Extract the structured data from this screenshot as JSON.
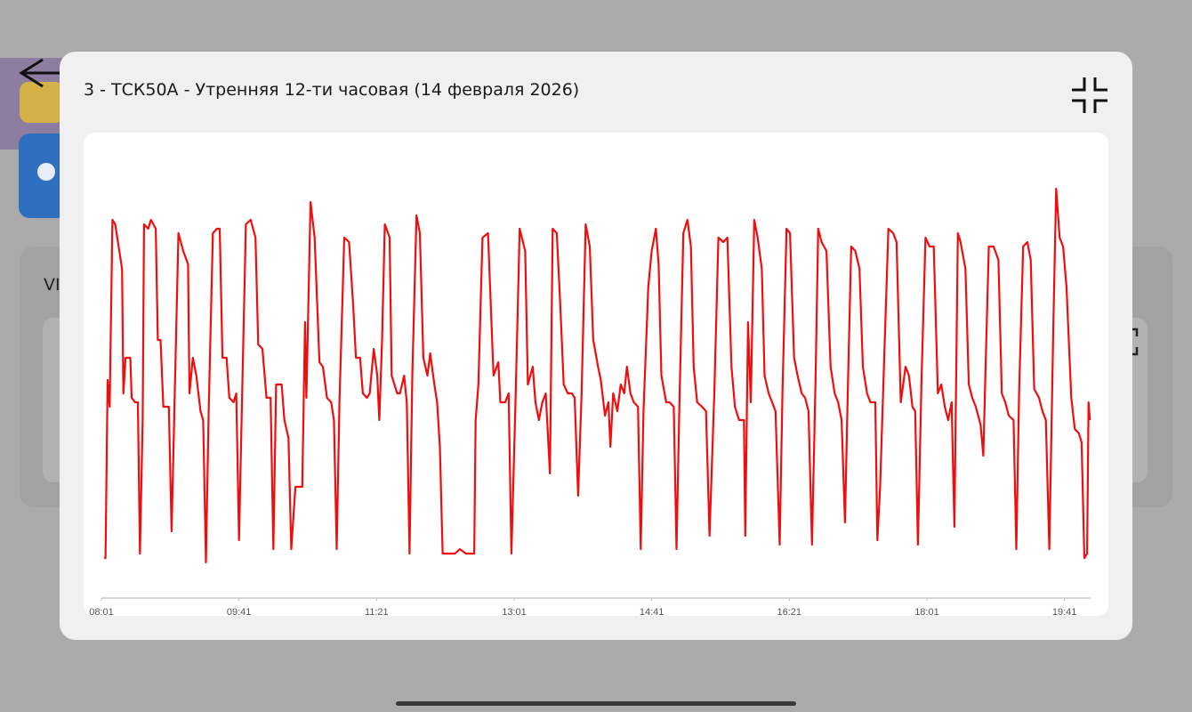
{
  "background": {
    "card_label": "VI"
  },
  "chart_data": {
    "type": "line",
    "title": "3 - ТСК50А - Утренняя 12-ти часовая (14 февраля 2026)",
    "x": [
      483,
      484,
      485.5,
      487,
      489,
      491,
      493,
      496,
      497,
      498.5,
      502,
      503,
      505.5,
      507.5,
      509,
      511,
      512,
      515,
      517,
      520.5,
      522,
      524,
      526,
      530,
      532,
      534,
      537,
      540.5,
      544,
      545,
      547.5,
      550,
      553,
      555,
      557,
      559,
      562,
      565,
      567,
      569,
      572,
      574,
      577,
      579,
      581,
      583,
      586,
      589.5,
      593,
      595,
      598,
      601,
      604,
      606,
      608,
      612,
      614,
      617,
      619,
      622,
      624.5,
      627,
      629,
      630,
      633,
      636,
      639.5,
      642,
      645,
      648,
      650,
      652,
      654,
      657.5,
      661,
      664,
      666,
      669,
      671,
      674,
      676,
      679,
      681.5,
      683,
      685,
      687,
      690.5,
      692,
      696,
      698,
      701,
      703,
      705,
      707,
      710,
      712.5,
      715,
      718,
      720,
      723,
      725,
      727,
      729,
      734,
      738,
      741.5,
      746,
      752,
      753,
      755,
      758,
      762,
      766,
      769.5,
      771,
      774.5,
      777,
      779,
      782,
      785,
      789,
      791,
      794.5,
      796.5,
      799,
      801.5,
      804,
      807,
      809,
      812,
      814.5,
      817,
      820,
      823,
      825,
      827.5,
      830,
      833,
      836,
      838.5,
      842,
      844,
      847,
      849.5,
      851,
      853,
      856,
      858.5,
      861,
      863,
      865.5,
      868,
      871,
      873,
      875,
      878.5,
      881,
      884,
      886,
      888,
      891.5,
      894,
      897,
      899,
      901,
      904,
      907,
      909.5,
      911.5,
      914,
      917.5,
      920.5,
      923,
      926.5,
      929.5,
      933,
      936,
      939,
      941.5,
      944.5,
      948,
      949,
      951,
      953,
      955.5,
      958,
      961,
      963,
      966,
      968.5,
      971,
      974,
      976,
      979,
      981.5,
      984.5,
      987,
      990,
      992.5,
      995,
      997.5,
      1000,
      1002,
      1004.5,
      1008,
      1011,
      1014,
      1016.5,
      1019,
      1021.5,
      1023.5,
      1026,
      1029,
      1032,
      1034.5,
      1037.5,
      1040,
      1043.5,
      1045,
      1047,
      1050,
      1053,
      1056.5,
      1059,
      1062,
      1065.5,
      1068,
      1070.5,
      1072.5,
      1074.5,
      1077,
      1080,
      1083,
      1086,
      1089,
      1091.5,
      1094,
      1096.5,
      1099,
      1101,
      1103.5,
      1105.5,
      1109,
      1111.5,
      1114,
      1116.5,
      1120,
      1122,
      1123.5,
      1126,
      1129.5,
      1133,
      1135.5,
      1138,
      1140.5,
      1144,
      1146,
      1148,
      1151,
      1154,
      1156.5,
      1159,
      1162.5,
      1165,
      1167.5,
      1170,
      1173,
      1175,
      1177.5,
      1180,
      1182.5,
      1186,
      1188.5,
      1191.5,
      1193.5,
      1195.5,
      1197.5,
      1198.5,
      1199.5
    ],
    "series": [
      {
        "color": "#f00d0d",
        "values": [
          9,
          9,
          49,
          43,
          85,
          84,
          80,
          74,
          46,
          54,
          54,
          45,
          44,
          44,
          10,
          40,
          84,
          83,
          85,
          83,
          58,
          58,
          43,
          43,
          15,
          42,
          82,
          78,
          75,
          46,
          54,
          50,
          42,
          40,
          8,
          42,
          82,
          83,
          83,
          54,
          54,
          45,
          44,
          46,
          13,
          42,
          84,
          85,
          81,
          57,
          56,
          45,
          45,
          11,
          48,
          48,
          40,
          36,
          11,
          25,
          25,
          25,
          62,
          45,
          89,
          81,
          53,
          52,
          45,
          44,
          40,
          11,
          44,
          81,
          80,
          66,
          54,
          54,
          46,
          45,
          46,
          56,
          50,
          40,
          58,
          84,
          81,
          50,
          46,
          46,
          50,
          44,
          10,
          50,
          86,
          82,
          54,
          50,
          55,
          48,
          44,
          34,
          10,
          10,
          10,
          11,
          10,
          10,
          40,
          48,
          81,
          82,
          50,
          53,
          44,
          44,
          46,
          10,
          44,
          83,
          78,
          48,
          52,
          44,
          40,
          44,
          46,
          28,
          83,
          82,
          66,
          48,
          46,
          46,
          45,
          23,
          46,
          84,
          79,
          58,
          52,
          49,
          41,
          44,
          34,
          46,
          42,
          48,
          46,
          52,
          46,
          44,
          43,
          11,
          42,
          70,
          78,
          83,
          75,
          50,
          44,
          44,
          43,
          11,
          42,
          82,
          85,
          79,
          52,
          44,
          43,
          42,
          14,
          46,
          81,
          80,
          81,
          52,
          43,
          40,
          40,
          14,
          62,
          44,
          85,
          81,
          74,
          50,
          46,
          44,
          42,
          12,
          46,
          83,
          82,
          54,
          50,
          46,
          45,
          42,
          12,
          48,
          83,
          80,
          78,
          52,
          46,
          44,
          40,
          17,
          46,
          79,
          78,
          74,
          52,
          46,
          44,
          44,
          13,
          25,
          54,
          83,
          82,
          80,
          44,
          52,
          50,
          43,
          42,
          12,
          48,
          81,
          79,
          79,
          46,
          48,
          43,
          40,
          44,
          16,
          82,
          80,
          74,
          48,
          45,
          43,
          39,
          32,
          50,
          79,
          79,
          76,
          46,
          44,
          41,
          40,
          11,
          46,
          79,
          80,
          76,
          47,
          45,
          42,
          40,
          11,
          62,
          92,
          81,
          79,
          70,
          45,
          38,
          37,
          35,
          9,
          10,
          44,
          40
        ]
      }
    ],
    "xlim": [
      481,
      1200
    ],
    "ylim": [
      0,
      100
    ],
    "xticks": [
      {
        "value": 481,
        "label": "08:01"
      },
      {
        "value": 581,
        "label": "09:41"
      },
      {
        "value": 681,
        "label": "11:21"
      },
      {
        "value": 781,
        "label": "13:01"
      },
      {
        "value": 881,
        "label": "14:41"
      },
      {
        "value": 981,
        "label": "16:21"
      },
      {
        "value": 1081,
        "label": "18:01"
      },
      {
        "value": 1181,
        "label": "19:41"
      }
    ]
  }
}
